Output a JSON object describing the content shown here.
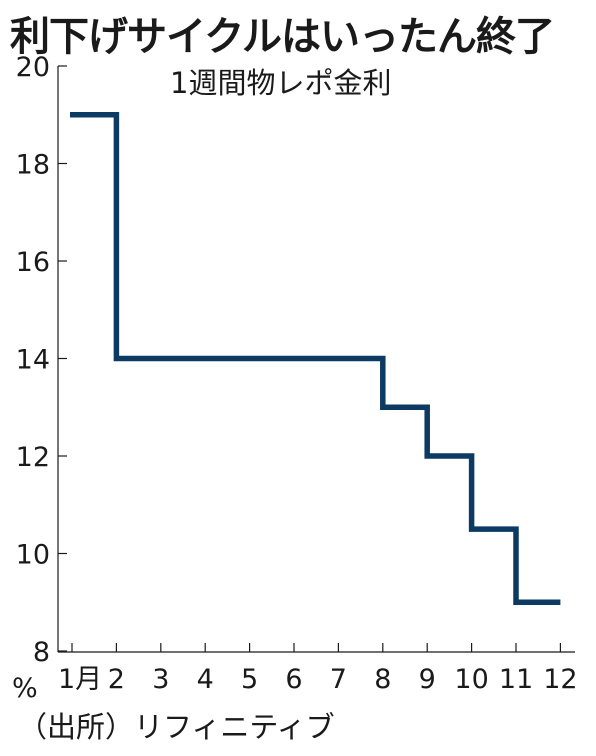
{
  "title": "利下げサイクルはいったん終了",
  "source": "（出所）リフィニティブ",
  "chart_data": {
    "type": "line",
    "step": true,
    "series_label": "1週間物レポ金利",
    "ylabel": "%",
    "categories": [
      "1月",
      "2",
      "3",
      "4",
      "5",
      "6",
      "7",
      "8",
      "9",
      "10",
      "11",
      "12"
    ],
    "ylim": [
      8,
      20
    ],
    "yticks": [
      8,
      10,
      12,
      14,
      16,
      18,
      20
    ],
    "series": [
      {
        "x": [
          1,
          2,
          8,
          9,
          10,
          11,
          12
        ],
        "values": [
          19,
          14,
          13,
          12,
          10.5,
          9,
          9
        ]
      }
    ],
    "line_color": "#0d3a63",
    "grid": false
  }
}
